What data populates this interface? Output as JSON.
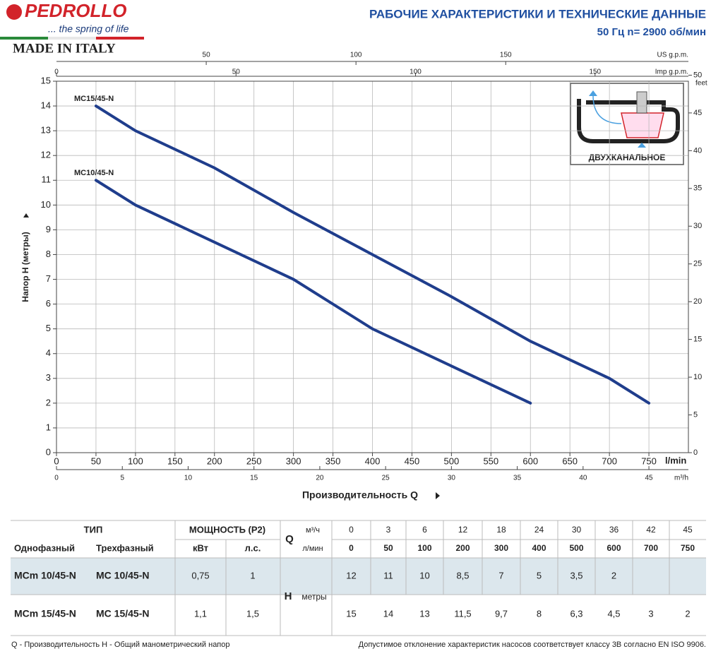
{
  "header": {
    "brand": "PEDROLLO",
    "slogan": "... the spring of life",
    "made_in": "MADE IN ITALY",
    "title": "РАБОЧИЕ ХАРАКТЕРИСТИКИ И ТЕХНИЧЕСКИЕ ДАННЫЕ",
    "subtitle": "50 Гц    n= 2900 об/мин"
  },
  "chart_data": {
    "type": "line",
    "xlabel": "Производительность Q",
    "ylabel": "Напор H (метры)",
    "grid": true,
    "annotations": [
      "ДВУХКАНАЛЬНОЕ"
    ],
    "xunit": "l/min",
    "xlim": [
      0,
      800
    ],
    "xticks": [
      0,
      50,
      100,
      150,
      200,
      250,
      300,
      350,
      400,
      450,
      500,
      550,
      600,
      650,
      700,
      750
    ],
    "ylim": [
      0,
      15
    ],
    "yticks": [
      0,
      1,
      2,
      3,
      4,
      5,
      6,
      7,
      8,
      9,
      10,
      11,
      12,
      13,
      14,
      15
    ],
    "x2unit": "m³/h",
    "x2lim": [
      0,
      48
    ],
    "x2ticks": [
      0,
      5,
      10,
      15,
      20,
      25,
      30,
      35,
      40,
      45
    ],
    "x3unit": "US g.p.m.",
    "x3lim": [
      0,
      211
    ],
    "x3ticks": [
      50,
      100,
      150
    ],
    "x4unit": "Imp g.p.m.",
    "x4lim": [
      0,
      176
    ],
    "x4ticks": [
      0,
      50,
      100,
      150
    ],
    "y2unit": "feet",
    "y2lim": [
      0,
      49.2
    ],
    "y2ticks": [
      0,
      5,
      10,
      15,
      20,
      25,
      30,
      35,
      40,
      45,
      50
    ],
    "series": [
      {
        "name": "MC15/45-N",
        "color": "#1f3d8c",
        "x": [
          50,
          100,
          200,
          300,
          400,
          500,
          600,
          700,
          750
        ],
        "values": [
          14,
          13,
          11.5,
          9.7,
          8,
          6.3,
          4.5,
          3,
          2
        ]
      },
      {
        "name": "MC10/45-N",
        "color": "#1f3d8c",
        "x": [
          50,
          100,
          200,
          300,
          400,
          500,
          600
        ],
        "values": [
          11,
          10,
          8.5,
          7,
          5,
          3.5,
          2
        ]
      }
    ]
  },
  "table": {
    "type_header": "ТИП",
    "power_header": "МОЩНОСТЬ (P2)",
    "single": "Однофазный",
    "three": "Трехфазный",
    "kw": "кВт",
    "hp": "л.с.",
    "q": "Q",
    "m3h_unit": "м³/ч",
    "lmin_unit": "л/мин",
    "h": "H",
    "h_unit": "метры",
    "m3h": [
      "0",
      "3",
      "6",
      "12",
      "18",
      "24",
      "30",
      "36",
      "42",
      "45"
    ],
    "lmin": [
      "0",
      "50",
      "100",
      "200",
      "300",
      "400",
      "500",
      "600",
      "700",
      "750"
    ],
    "rows": [
      [
        "MCm 10/45-N",
        "MC 10/45-N",
        "0,75",
        "1",
        [
          "12",
          "11",
          "10",
          "8,5",
          "7",
          "5",
          "3,5",
          "2",
          null,
          null
        ]
      ],
      [
        "MCm 15/45-N",
        "MC 15/45-N",
        "1,1",
        "1,5",
        [
          "15",
          "14",
          "13",
          "11,5",
          "9,7",
          "8",
          "6,3",
          "4,5",
          "3",
          "2"
        ]
      ]
    ]
  },
  "footer": {
    "legend": "Q - Производительность   H - Общий манометрический напор",
    "note": "Допустимое отклонение характеристик насосов соответствует классу 3B согласно EN ISO 9906."
  }
}
